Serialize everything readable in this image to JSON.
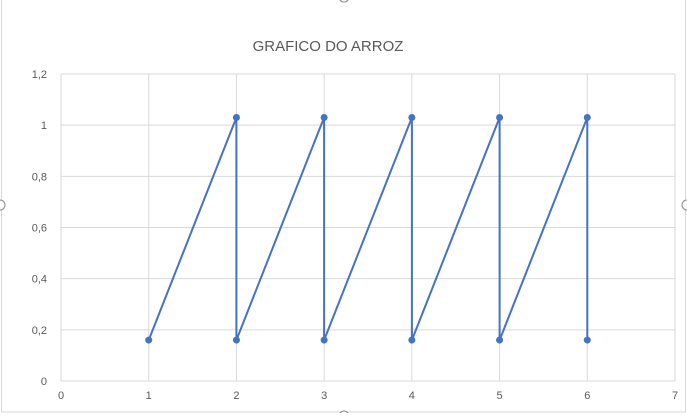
{
  "chart_data": {
    "type": "scatter",
    "title": "GRAFICO DO ARROZ",
    "xlabel": "",
    "ylabel": "",
    "xlim": [
      0,
      7
    ],
    "ylim": [
      0,
      1.2
    ],
    "x_ticks": [
      "0",
      "1",
      "2",
      "3",
      "4",
      "5",
      "6",
      "7"
    ],
    "y_ticks": [
      "0",
      "0,2",
      "0,4",
      "0,6",
      "0,8",
      "1",
      "1,2"
    ],
    "grid": true,
    "legend": "none",
    "series": [
      {
        "x": [
          1,
          2,
          2,
          3,
          3,
          4,
          4,
          5,
          5,
          6,
          6
        ],
        "y": [
          0.16,
          1.03,
          0.16,
          1.03,
          0.16,
          1.03,
          0.16,
          1.03,
          0.16,
          1.03,
          0.16
        ],
        "color": "#4472c4",
        "lines": true,
        "markers": true
      }
    ],
    "colors": {
      "gridline": "#d9d9d9",
      "axis_text": "#595959",
      "title": "#595959"
    }
  }
}
